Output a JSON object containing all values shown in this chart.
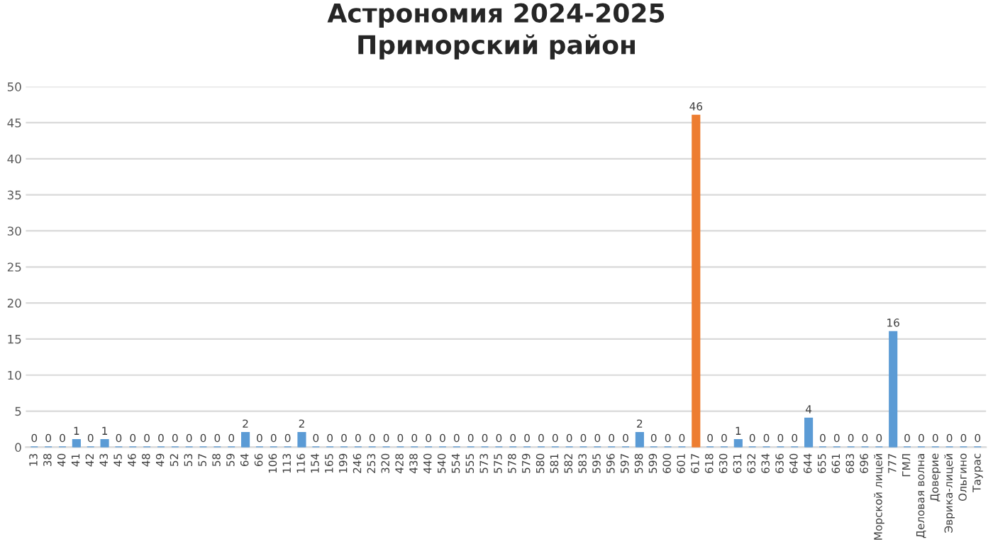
{
  "chart_data": {
    "type": "bar",
    "title": "Астрономия 2024-2025\nПриморский район",
    "categories": [
      "13",
      "38",
      "40",
      "41",
      "42",
      "43",
      "45",
      "46",
      "48",
      "49",
      "52",
      "53",
      "57",
      "58",
      "59",
      "64",
      "66",
      "106",
      "113",
      "116",
      "154",
      "165",
      "199",
      "246",
      "253",
      "320",
      "428",
      "438",
      "440",
      "540",
      "554",
      "555",
      "573",
      "575",
      "578",
      "579",
      "580",
      "581",
      "582",
      "583",
      "595",
      "596",
      "597",
      "598",
      "599",
      "600",
      "601",
      "617",
      "618",
      "630",
      "631",
      "632",
      "634",
      "636",
      "640",
      "644",
      "655",
      "661",
      "683",
      "696",
      "Морской лицей",
      "777",
      "ГМЛ",
      "Деловая волна",
      "Доверие",
      "Эврика-лицей",
      "Ольгино",
      "Таурас"
    ],
    "values": [
      0,
      0,
      0,
      1,
      0,
      1,
      0,
      0,
      0,
      0,
      0,
      0,
      0,
      0,
      0,
      2,
      0,
      0,
      0,
      2,
      0,
      0,
      0,
      0,
      0,
      0,
      0,
      0,
      0,
      0,
      0,
      0,
      0,
      0,
      0,
      0,
      0,
      0,
      0,
      0,
      0,
      0,
      0,
      2,
      0,
      0,
      0,
      46,
      0,
      0,
      1,
      0,
      0,
      0,
      0,
      4,
      0,
      0,
      0,
      0,
      0,
      16,
      0,
      0,
      0,
      0,
      0,
      0
    ],
    "colors": [
      "#5b9bd5",
      "#5b9bd5",
      "#5b9bd5",
      "#5b9bd5",
      "#5b9bd5",
      "#5b9bd5",
      "#5b9bd5",
      "#5b9bd5",
      "#5b9bd5",
      "#5b9bd5",
      "#5b9bd5",
      "#5b9bd5",
      "#5b9bd5",
      "#5b9bd5",
      "#5b9bd5",
      "#5b9bd5",
      "#5b9bd5",
      "#5b9bd5",
      "#5b9bd5",
      "#5b9bd5",
      "#5b9bd5",
      "#5b9bd5",
      "#5b9bd5",
      "#5b9bd5",
      "#5b9bd5",
      "#5b9bd5",
      "#5b9bd5",
      "#5b9bd5",
      "#5b9bd5",
      "#5b9bd5",
      "#5b9bd5",
      "#5b9bd5",
      "#5b9bd5",
      "#5b9bd5",
      "#5b9bd5",
      "#5b9bd5",
      "#5b9bd5",
      "#5b9bd5",
      "#5b9bd5",
      "#5b9bd5",
      "#5b9bd5",
      "#5b9bd5",
      "#5b9bd5",
      "#5b9bd5",
      "#5b9bd5",
      "#5b9bd5",
      "#5b9bd5",
      "#ed7d31",
      "#5b9bd5",
      "#5b9bd5",
      "#5b9bd5",
      "#5b9bd5",
      "#5b9bd5",
      "#5b9bd5",
      "#5b9bd5",
      "#5b9bd5",
      "#5b9bd5",
      "#5b9bd5",
      "#5b9bd5",
      "#5b9bd5",
      "#5b9bd5",
      "#5b9bd5",
      "#5b9bd5",
      "#5b9bd5",
      "#5b9bd5",
      "#5b9bd5",
      "#5b9bd5",
      "#5b9bd5"
    ],
    "ylim": [
      0,
      50
    ],
    "yticks": [
      0,
      5,
      10,
      15,
      20,
      25,
      30,
      35,
      40,
      45,
      50
    ],
    "grid": "y",
    "data_labels": true,
    "legend": false
  }
}
